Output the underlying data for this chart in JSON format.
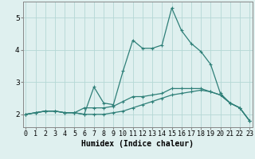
{
  "xlabel": "Humidex (Indice chaleur)",
  "x": [
    0,
    1,
    2,
    3,
    4,
    5,
    6,
    7,
    8,
    9,
    10,
    11,
    12,
    13,
    14,
    15,
    16,
    17,
    18,
    19,
    20,
    21,
    22,
    23
  ],
  "line1": [
    2.0,
    2.05,
    2.1,
    2.1,
    2.05,
    2.05,
    2.0,
    2.0,
    2.0,
    2.05,
    2.1,
    2.2,
    2.3,
    2.4,
    2.5,
    2.6,
    2.65,
    2.7,
    2.75,
    2.7,
    2.6,
    2.35,
    2.2,
    1.8
  ],
  "line2": [
    2.0,
    2.05,
    2.1,
    2.1,
    2.05,
    2.05,
    2.0,
    2.85,
    2.35,
    2.3,
    3.35,
    4.3,
    4.05,
    4.05,
    4.15,
    5.3,
    4.6,
    4.2,
    3.95,
    3.55,
    2.65,
    2.35,
    2.2,
    1.8
  ],
  "line3": [
    2.0,
    2.05,
    2.1,
    2.1,
    2.05,
    2.05,
    2.2,
    2.2,
    2.2,
    2.25,
    2.4,
    2.55,
    2.55,
    2.6,
    2.65,
    2.8,
    2.8,
    2.8,
    2.8,
    2.7,
    2.6,
    2.35,
    2.2,
    1.8
  ],
  "line_color": "#2e7f78",
  "bg_color": "#dff0ef",
  "grid_color": "#b5d8d5",
  "xlabel_fontsize": 7,
  "tick_fontsize": 6,
  "ylim": [
    1.6,
    5.5
  ],
  "xlim": [
    -0.3,
    23.3
  ]
}
